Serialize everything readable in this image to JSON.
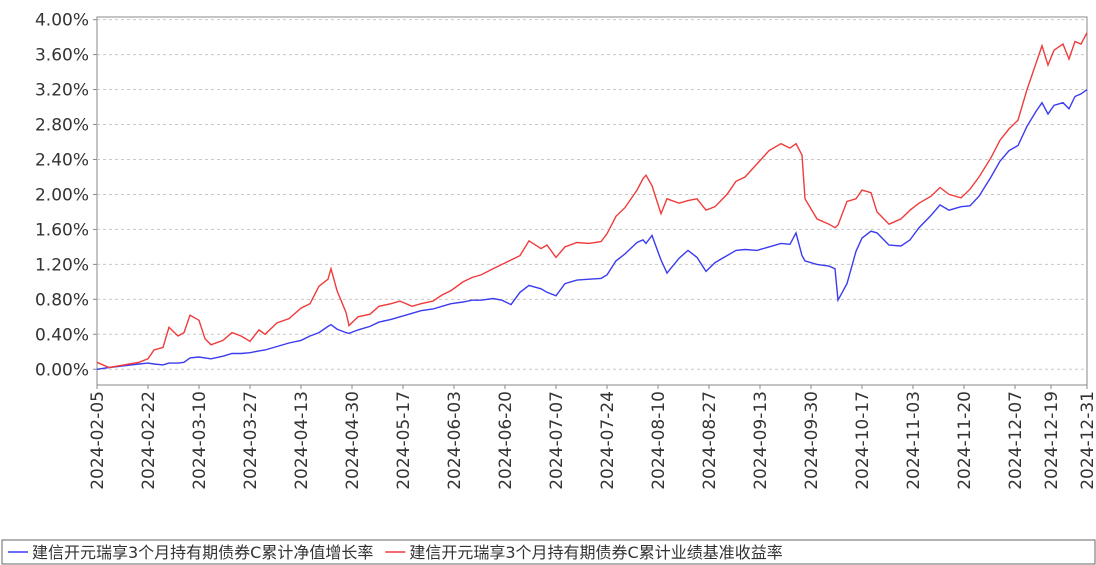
{
  "chart_data": {
    "type": "line",
    "x": [
      "2024-02-05",
      "2024-02-09",
      "2024-02-14",
      "2024-02-19",
      "2024-02-22",
      "2024-02-24",
      "2024-02-27",
      "2024-02-29",
      "2024-03-03",
      "2024-03-05",
      "2024-03-07",
      "2024-03-10",
      "2024-03-12",
      "2024-03-14",
      "2024-03-18",
      "2024-03-21",
      "2024-03-24",
      "2024-03-27",
      "2024-03-30",
      "2024-04-01",
      "2024-04-05",
      "2024-04-09",
      "2024-04-13",
      "2024-04-16",
      "2024-04-19",
      "2024-04-22",
      "2024-04-23",
      "2024-04-25",
      "2024-04-28",
      "2024-04-29",
      "2024-05-02",
      "2024-05-06",
      "2024-05-09",
      "2024-05-13",
      "2024-05-16",
      "2024-05-20",
      "2024-05-23",
      "2024-05-27",
      "2024-05-30",
      "2024-06-02",
      "2024-06-06",
      "2024-06-09",
      "2024-06-12",
      "2024-06-16",
      "2024-06-19",
      "2024-06-22",
      "2024-06-25",
      "2024-06-28",
      "2024-07-02",
      "2024-07-04",
      "2024-07-07",
      "2024-07-10",
      "2024-07-14",
      "2024-07-18",
      "2024-07-22",
      "2024-07-24",
      "2024-07-27",
      "2024-07-30",
      "2024-08-03",
      "2024-08-05",
      "2024-08-06",
      "2024-08-08",
      "2024-08-11",
      "2024-08-13",
      "2024-08-17",
      "2024-08-20",
      "2024-08-23",
      "2024-08-26",
      "2024-08-29",
      "2024-09-02",
      "2024-09-05",
      "2024-09-08",
      "2024-09-12",
      "2024-09-16",
      "2024-09-20",
      "2024-09-23",
      "2024-09-25",
      "2024-09-27",
      "2024-09-28",
      "2024-10-02",
      "2024-10-06",
      "2024-10-08",
      "2024-10-09",
      "2024-10-12",
      "2024-10-15",
      "2024-10-17",
      "2024-10-20",
      "2024-10-22",
      "2024-10-26",
      "2024-10-30",
      "2024-11-02",
      "2024-11-05",
      "2024-11-09",
      "2024-11-12",
      "2024-11-15",
      "2024-11-19",
      "2024-11-22",
      "2024-11-25",
      "2024-11-29",
      "2024-12-02",
      "2024-12-05",
      "2024-12-08",
      "2024-12-11",
      "2024-12-14",
      "2024-12-16",
      "2024-12-18",
      "2024-12-20",
      "2024-12-23",
      "2024-12-25",
      "2024-12-27",
      "2024-12-29",
      "2024-12-31"
    ],
    "series": [
      {
        "name": "建信开元瑞享3个月持有期债券C累计净值增长率",
        "color": "#3b3bf0",
        "values": [
          0.0,
          0.02,
          0.04,
          0.06,
          0.07,
          0.06,
          0.05,
          0.07,
          0.07,
          0.08,
          0.13,
          0.14,
          0.13,
          0.12,
          0.15,
          0.18,
          0.18,
          0.19,
          0.21,
          0.22,
          0.26,
          0.3,
          0.33,
          0.38,
          0.42,
          0.49,
          0.51,
          0.46,
          0.42,
          0.41,
          0.45,
          0.49,
          0.54,
          0.57,
          0.6,
          0.64,
          0.67,
          0.69,
          0.72,
          0.75,
          0.77,
          0.79,
          0.79,
          0.81,
          0.79,
          0.74,
          0.88,
          0.96,
          0.92,
          0.88,
          0.84,
          0.98,
          1.02,
          1.03,
          1.04,
          1.08,
          1.24,
          1.32,
          1.45,
          1.48,
          1.44,
          1.53,
          1.25,
          1.1,
          1.27,
          1.36,
          1.28,
          1.12,
          1.22,
          1.3,
          1.36,
          1.37,
          1.36,
          1.4,
          1.44,
          1.43,
          1.56,
          1.3,
          1.24,
          1.2,
          1.18,
          1.15,
          0.79,
          0.98,
          1.35,
          1.5,
          1.58,
          1.56,
          1.42,
          1.41,
          1.48,
          1.62,
          1.76,
          1.88,
          1.82,
          1.86,
          1.87,
          1.98,
          2.2,
          2.38,
          2.5,
          2.56,
          2.78,
          2.95,
          3.05,
          2.92,
          3.02,
          3.05,
          2.98,
          3.12,
          3.15,
          3.2
        ]
      },
      {
        "name": "建信开元瑞享3个月持有期债券C累计业绩基准收益率",
        "color": "#f03b3b",
        "values": [
          0.08,
          0.02,
          0.05,
          0.08,
          0.12,
          0.22,
          0.25,
          0.48,
          0.38,
          0.42,
          0.62,
          0.56,
          0.35,
          0.28,
          0.33,
          0.42,
          0.38,
          0.32,
          0.45,
          0.4,
          0.53,
          0.58,
          0.7,
          0.75,
          0.95,
          1.03,
          1.15,
          0.9,
          0.65,
          0.5,
          0.6,
          0.63,
          0.72,
          0.75,
          0.78,
          0.72,
          0.75,
          0.78,
          0.85,
          0.9,
          1.0,
          1.05,
          1.08,
          1.15,
          1.2,
          1.25,
          1.3,
          1.47,
          1.38,
          1.42,
          1.28,
          1.4,
          1.45,
          1.44,
          1.46,
          1.55,
          1.75,
          1.85,
          2.05,
          2.18,
          2.22,
          2.1,
          1.78,
          1.95,
          1.9,
          1.93,
          1.95,
          1.82,
          1.86,
          2.0,
          2.15,
          2.2,
          2.35,
          2.5,
          2.58,
          2.53,
          2.58,
          2.45,
          1.95,
          1.72,
          1.66,
          1.62,
          1.65,
          1.92,
          1.95,
          2.05,
          2.02,
          1.8,
          1.66,
          1.72,
          1.82,
          1.9,
          1.98,
          2.08,
          2.0,
          1.96,
          2.06,
          2.2,
          2.42,
          2.62,
          2.75,
          2.85,
          3.2,
          3.5,
          3.7,
          3.48,
          3.65,
          3.72,
          3.55,
          3.75,
          3.72,
          3.85
        ]
      }
    ],
    "xlim": [
      "2024-02-05",
      "2024-12-31"
    ],
    "xticks": [
      "2024-02-05",
      "2024-02-22",
      "2024-03-10",
      "2024-03-27",
      "2024-04-13",
      "2024-04-30",
      "2024-05-17",
      "2024-06-03",
      "2024-06-20",
      "2024-07-07",
      "2024-07-24",
      "2024-08-10",
      "2024-08-27",
      "2024-09-13",
      "2024-09-30",
      "2024-10-17",
      "2024-11-03",
      "2024-11-20",
      "2024-12-07",
      "2024-12-19",
      "2024-12-31"
    ],
    "ylim": [
      -0.18,
      4.03
    ],
    "yticks": [
      {
        "value": 0,
        "label": "0.00%"
      },
      {
        "value": 0.4,
        "label": "0.40%"
      },
      {
        "value": 0.8,
        "label": "0.80%"
      },
      {
        "value": 1.2,
        "label": "1.20%"
      },
      {
        "value": 1.6,
        "label": "1.60%"
      },
      {
        "value": 2.0,
        "label": "2.00%"
      },
      {
        "value": 2.4,
        "label": "2.40%"
      },
      {
        "value": 2.8,
        "label": "2.80%"
      },
      {
        "value": 3.2,
        "label": "3.20%"
      },
      {
        "value": 3.6,
        "label": "3.60%"
      },
      {
        "value": 4.0,
        "label": "4.00%"
      }
    ],
    "grid": true
  }
}
